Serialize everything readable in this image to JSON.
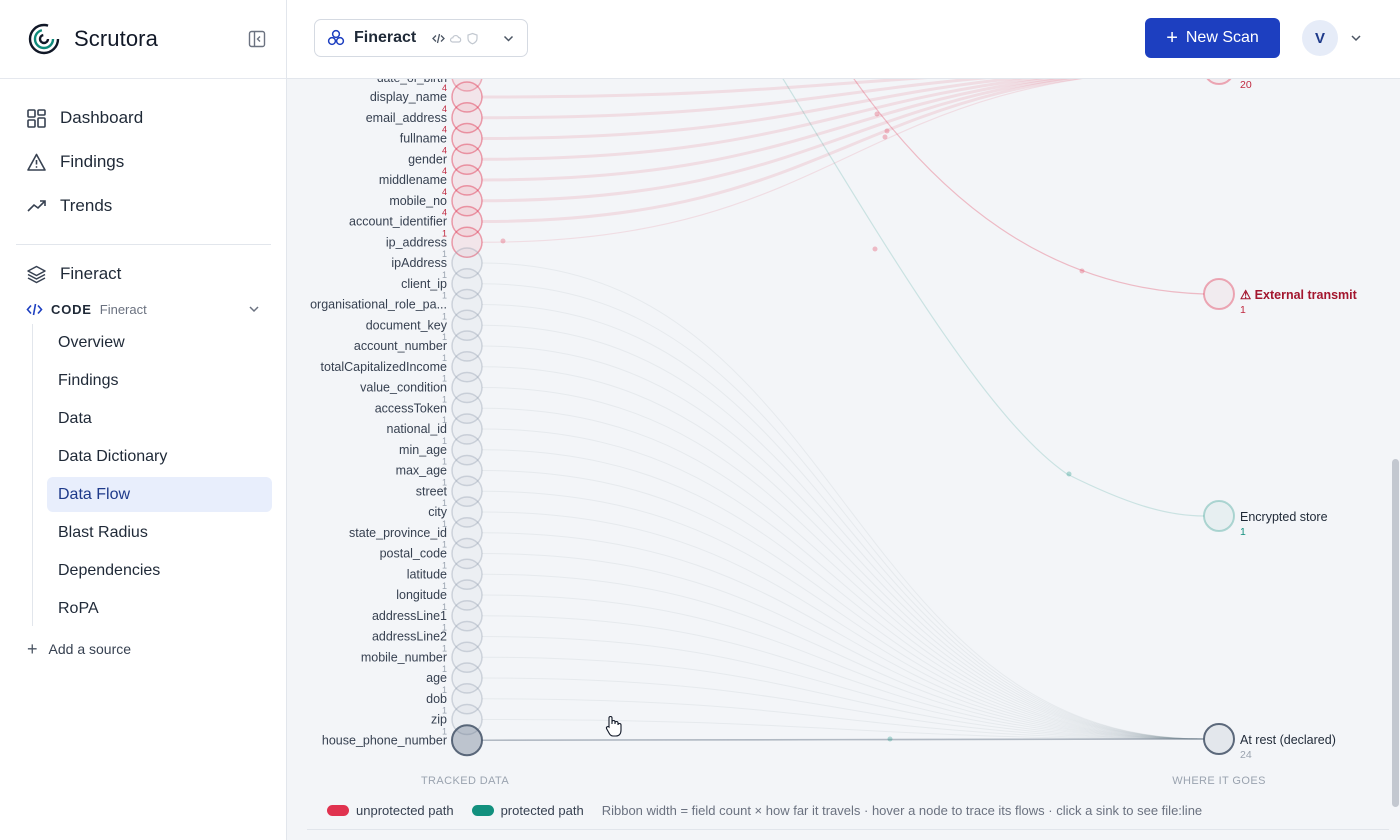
{
  "app": {
    "name": "Scrutora"
  },
  "nav": {
    "items": [
      {
        "label": "Dashboard",
        "icon": "dashboard-icon"
      },
      {
        "label": "Findings",
        "icon": "warning-icon"
      },
      {
        "label": "Trends",
        "icon": "trend-icon"
      }
    ]
  },
  "project": {
    "name": "Fineract",
    "icon": "layers-icon"
  },
  "source": {
    "type": "CODE",
    "name": "Fineract"
  },
  "subnav": {
    "items": [
      "Overview",
      "Findings",
      "Data",
      "Data Dictionary",
      "Data Flow",
      "Blast Radius",
      "Dependencies",
      "RoPA"
    ],
    "active": "Data Flow"
  },
  "add_source": "Add a source",
  "topbar": {
    "project_name": "Fineract",
    "new_scan_label": "New Scan",
    "avatar_initial": "V"
  },
  "flow": {
    "top_partial_label": "date_of_birth",
    "fields": [
      {
        "name": "display_name",
        "count": "4",
        "risk": true
      },
      {
        "name": "email_address",
        "count": "4",
        "risk": true
      },
      {
        "name": "fullname",
        "count": "4",
        "risk": true
      },
      {
        "name": "gender",
        "count": "4",
        "risk": true
      },
      {
        "name": "middlename",
        "count": "4",
        "risk": true
      },
      {
        "name": "mobile_no",
        "count": "4",
        "risk": true
      },
      {
        "name": "account_identifier",
        "count": "4",
        "risk": true
      },
      {
        "name": "ip_address",
        "count": "1",
        "risk": true
      },
      {
        "name": "ipAddress",
        "count": "1",
        "risk": false
      },
      {
        "name": "client_ip",
        "count": "1",
        "risk": false
      },
      {
        "name": "organisational_role_pa...",
        "count": "1",
        "risk": false
      },
      {
        "name": "document_key",
        "count": "1",
        "risk": false
      },
      {
        "name": "account_number",
        "count": "1",
        "risk": false
      },
      {
        "name": "totalCapitalizedIncome",
        "count": "1",
        "risk": false
      },
      {
        "name": "value_condition",
        "count": "1",
        "risk": false
      },
      {
        "name": "accessToken",
        "count": "1",
        "risk": false
      },
      {
        "name": "national_id",
        "count": "1",
        "risk": false
      },
      {
        "name": "min_age",
        "count": "1",
        "risk": false
      },
      {
        "name": "max_age",
        "count": "1",
        "risk": false
      },
      {
        "name": "street",
        "count": "1",
        "risk": false
      },
      {
        "name": "city",
        "count": "1",
        "risk": false
      },
      {
        "name": "state_province_id",
        "count": "1",
        "risk": false
      },
      {
        "name": "postal_code",
        "count": "1",
        "risk": false
      },
      {
        "name": "latitude",
        "count": "1",
        "risk": false
      },
      {
        "name": "longitude",
        "count": "1",
        "risk": false
      },
      {
        "name": "addressLine1",
        "count": "1",
        "risk": false
      },
      {
        "name": "addressLine2",
        "count": "1",
        "risk": false
      },
      {
        "name": "mobile_number",
        "count": "1",
        "risk": false
      },
      {
        "name": "age",
        "count": "1",
        "risk": false
      },
      {
        "name": "dob",
        "count": "1",
        "risk": false
      },
      {
        "name": "zip",
        "count": "1",
        "risk": false
      },
      {
        "name": "house_phone_number",
        "count": "1",
        "risk": false
      }
    ],
    "sinks": [
      {
        "label": "",
        "count": "20",
        "kind": "unprotected"
      },
      {
        "label": "⚠ External transmit",
        "count": "1",
        "kind": "external"
      },
      {
        "label": "Encrypted store",
        "count": "1",
        "kind": "protected"
      },
      {
        "label": "At rest (declared)",
        "count": "24",
        "kind": "rest"
      }
    ],
    "axis_left": "TRACKED DATA",
    "axis_right": "WHERE IT GOES"
  },
  "legend": {
    "unprotected": "unprotected path",
    "protected": "protected path",
    "note": "Ribbon width = field count × how far it travels · hover a node to trace its flows · click a sink to see file:line"
  },
  "colors": {
    "unprotected": "#e0324f",
    "protected": "#12907e",
    "brand": "#1d3fc0",
    "neutral": "#7a8798"
  }
}
